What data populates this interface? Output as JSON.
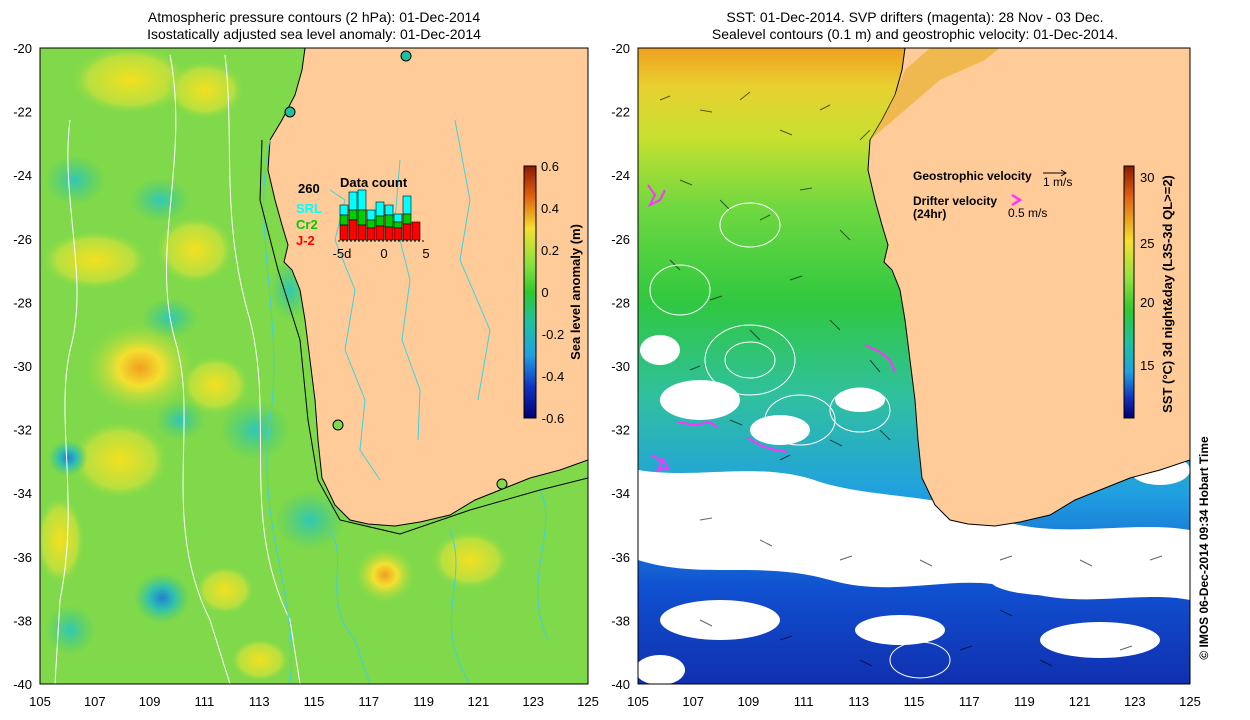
{
  "left_panel": {
    "title_line1": "Atmospheric pressure contours (2 hPa): 01-Dec-2014",
    "title_line2": "Isostatically adjusted sea level anomaly: 01-Dec-2014",
    "x_ticks": [
      "105",
      "107",
      "109",
      "111",
      "113",
      "115",
      "117",
      "119",
      "121",
      "123",
      "125"
    ],
    "y_ticks": [
      "-20",
      "-22",
      "-24",
      "-26",
      "-28",
      "-30",
      "-32",
      "-34",
      "-36",
      "-38",
      "-40"
    ],
    "inset": {
      "total": "260",
      "title": "Data count",
      "legend": [
        "SRL",
        "Cr2",
        "J-2"
      ],
      "ticks": [
        "-5d",
        "0",
        "5"
      ],
      "colors": {
        "SRL": "#00ffff",
        "Cr2": "#00cc00",
        "J-2": "#ff0000"
      }
    },
    "colorbar": {
      "label": "Sea level anomaly (m)",
      "ticks": [
        "0.6",
        "0.4",
        "0.2",
        "0",
        "-0.2",
        "-0.4",
        "-0.6"
      ]
    }
  },
  "right_panel": {
    "title_line1": "SST: 01-Dec-2014. SVP drifters (magenta): 28 Nov - 03 Dec.",
    "title_line2": "Sealevel contours (0.1 m) and geostrophic velocity: 01-Dec-2014.",
    "x_ticks": [
      "105",
      "107",
      "109",
      "111",
      "113",
      "115",
      "117",
      "119",
      "121",
      "123",
      "125"
    ],
    "y_ticks": [
      "-20",
      "-22",
      "-24",
      "-26",
      "-28",
      "-30",
      "-32",
      "-34",
      "-36",
      "-38",
      "-40"
    ],
    "legend": {
      "geo_label": "Geostrophic velocity",
      "geo_scale": "1 m/s",
      "drifter_label_1": "Drifter velocity",
      "drifter_label_2": "(24hr)",
      "drifter_scale": "0.5 m/s"
    },
    "colorbar": {
      "label": "SST (°C) 3d night&day (L3S-3d QL>=2)",
      "ticks": [
        "30",
        "25",
        "20",
        "15"
      ]
    }
  },
  "credit": "© IMOS 06-Dec-2014 09:34 Hobart Time",
  "colors": {
    "land": "#ffcc99",
    "ocean_green": "#33cc33",
    "magenta": "#ff33ff"
  }
}
